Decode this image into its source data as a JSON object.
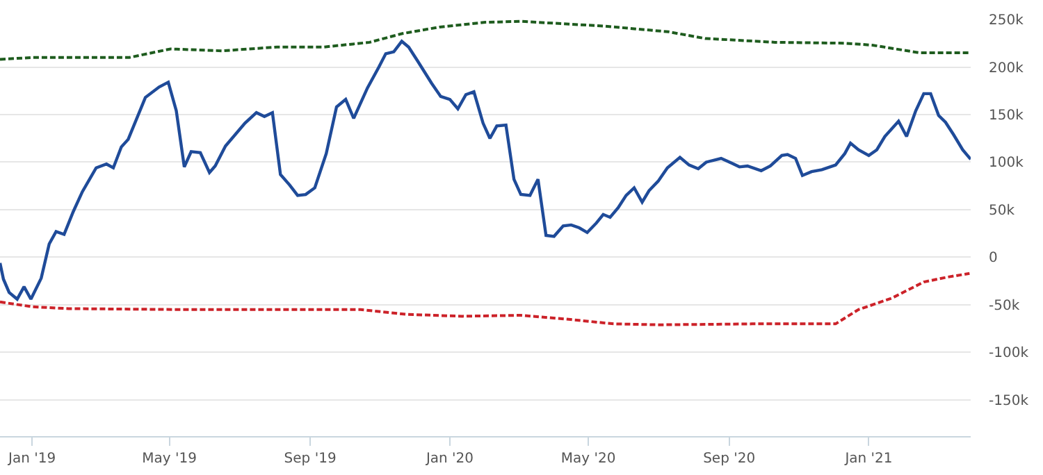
{
  "chart_data": {
    "type": "line",
    "xlim": [
      "2018-12-04",
      "2021-03-31"
    ],
    "xticks": [
      {
        "value": "2019-01-01",
        "label": "Jan '19"
      },
      {
        "value": "2019-05-01",
        "label": "May '19"
      },
      {
        "value": "2019-09-01",
        "label": "Sep '19"
      },
      {
        "value": "2020-01-01",
        "label": "Jan '20"
      },
      {
        "value": "2020-05-01",
        "label": "May '20"
      },
      {
        "value": "2020-09-01",
        "label": "Sep '20"
      },
      {
        "value": "2021-01-01",
        "label": "Jan '21"
      }
    ],
    "ylim": [
      -188000,
      250000
    ],
    "yticks": [
      {
        "value": 250000,
        "label": "250k"
      },
      {
        "value": 200000,
        "label": "200k"
      },
      {
        "value": 150000,
        "label": "150k"
      },
      {
        "value": 100000,
        "label": "100k"
      },
      {
        "value": 50000,
        "label": "50k"
      },
      0,
      {
        "value": -50000,
        "label": "-50k"
      },
      {
        "value": -100000,
        "label": "-100k"
      },
      {
        "value": -150000,
        "label": "-150k"
      }
    ],
    "grid": "y",
    "series": [
      {
        "color": "#1f4b99",
        "line_style": "solid",
        "x": [
          "2018-12-04",
          "2018-12-07",
          "2018-12-12",
          "2018-12-19",
          "2018-12-25",
          "2018-12-31",
          "2019-01-09",
          "2019-01-16",
          "2019-01-22",
          "2019-01-29",
          "2019-02-06",
          "2019-02-14",
          "2019-02-26",
          "2019-03-07",
          "2019-03-13",
          "2019-03-20",
          "2019-03-26",
          "2019-04-10",
          "2019-04-22",
          "2019-04-30",
          "2019-05-07",
          "2019-05-14",
          "2019-05-20",
          "2019-05-28",
          "2019-06-05",
          "2019-06-10",
          "2019-06-19",
          "2019-07-06",
          "2019-07-16",
          "2019-07-23",
          "2019-07-30",
          "2019-08-06",
          "2019-08-14",
          "2019-08-21",
          "2019-08-28",
          "2019-09-05",
          "2019-09-15",
          "2019-09-24",
          "2019-10-02",
          "2019-10-09",
          "2019-10-21",
          "2019-10-31",
          "2019-11-06",
          "2019-11-13",
          "2019-11-20",
          "2019-11-26",
          "2019-12-04",
          "2019-12-16",
          "2019-12-24",
          "2020-01-01",
          "2020-01-08",
          "2020-01-15",
          "2020-01-22",
          "2020-01-30",
          "2020-02-05",
          "2020-02-11",
          "2020-02-19",
          "2020-02-26",
          "2020-03-03",
          "2020-03-11",
          "2020-03-18",
          "2020-03-25",
          "2020-04-01",
          "2020-04-09",
          "2020-04-16",
          "2020-04-23",
          "2020-04-30",
          "2020-05-08",
          "2020-05-14",
          "2020-05-20",
          "2020-05-27",
          "2020-06-03",
          "2020-06-10",
          "2020-06-17",
          "2020-06-23",
          "2020-07-01",
          "2020-07-09",
          "2020-07-20",
          "2020-07-28",
          "2020-08-05",
          "2020-08-12",
          "2020-08-25",
          "2020-09-03",
          "2020-09-10",
          "2020-09-17",
          "2020-09-29",
          "2020-10-07",
          "2020-10-17",
          "2020-10-22",
          "2020-10-29",
          "2020-11-04",
          "2020-11-12",
          "2020-11-21",
          "2020-12-03",
          "2020-12-11",
          "2020-12-16",
          "2020-12-23",
          "2021-01-01",
          "2021-01-08",
          "2021-01-15",
          "2021-01-27",
          "2021-02-03",
          "2021-02-11",
          "2021-02-18",
          "2021-02-24",
          "2021-03-03",
          "2021-03-09",
          "2021-03-16",
          "2021-03-24",
          "2021-03-31"
        ],
        "values": [
          -6000,
          -23000,
          -37000,
          -44000,
          -31000,
          -44000,
          -22000,
          14000,
          27000,
          24000,
          48000,
          69000,
          94000,
          98000,
          94000,
          116000,
          124000,
          168000,
          179000,
          184000,
          154000,
          95000,
          111000,
          110000,
          89000,
          96000,
          117000,
          141000,
          152000,
          148000,
          152000,
          87000,
          76000,
          65000,
          66000,
          73000,
          109000,
          158000,
          166000,
          146000,
          178000,
          200000,
          214000,
          216000,
          227000,
          221000,
          206000,
          183000,
          169000,
          166000,
          156000,
          171000,
          174000,
          141000,
          125000,
          138000,
          139000,
          82000,
          66000,
          65000,
          82000,
          23000,
          22000,
          33000,
          34000,
          31000,
          26000,
          36000,
          45000,
          42000,
          52000,
          65000,
          73000,
          58000,
          70000,
          80000,
          94000,
          105000,
          97000,
          93000,
          100000,
          104000,
          99000,
          95000,
          96000,
          91000,
          96000,
          107000,
          108000,
          104000,
          86000,
          90000,
          92000,
          97000,
          109000,
          120000,
          113000,
          107000,
          113000,
          127000,
          143000,
          127000,
          154000,
          172000,
          172000,
          149000,
          142000,
          129000,
          113000,
          103000
        ]
      },
      {
        "color": "#1e5c1e",
        "line_style": "dashed",
        "x": [
          "2018-12-04",
          "2019-01-01",
          "2019-03-27",
          "2019-05-02",
          "2019-06-16",
          "2019-08-03",
          "2019-09-13",
          "2019-10-23",
          "2019-11-20",
          "2019-12-23",
          "2020-02-01",
          "2020-03-03",
          "2020-05-15",
          "2020-07-10",
          "2020-08-11",
          "2020-10-11",
          "2020-12-11",
          "2021-01-04",
          "2021-02-14",
          "2021-03-30"
        ],
        "values": [
          208000,
          210000,
          210000,
          219000,
          217000,
          221000,
          221000,
          226000,
          235000,
          242000,
          247000,
          248000,
          243000,
          237000,
          230000,
          226000,
          225000,
          223000,
          215000,
          215000
        ]
      },
      {
        "color": "#cc2229",
        "line_style": "dashed",
        "x": [
          "2018-12-04",
          "2019-01-01",
          "2019-02-02",
          "2019-05-14",
          "2019-10-15",
          "2019-11-24",
          "2020-01-12",
          "2020-03-03",
          "2020-04-12",
          "2020-05-23",
          "2020-07-02",
          "2020-09-21",
          "2020-12-03",
          "2020-12-23",
          "2021-01-21",
          "2021-02-18",
          "2021-03-10",
          "2021-03-30"
        ],
        "values": [
          -47000,
          -52000,
          -54000,
          -55000,
          -55000,
          -60000,
          -62000,
          -61000,
          -65000,
          -70000,
          -71000,
          -70000,
          -70000,
          -55000,
          -43000,
          -26000,
          -21000,
          -17000
        ]
      }
    ]
  }
}
